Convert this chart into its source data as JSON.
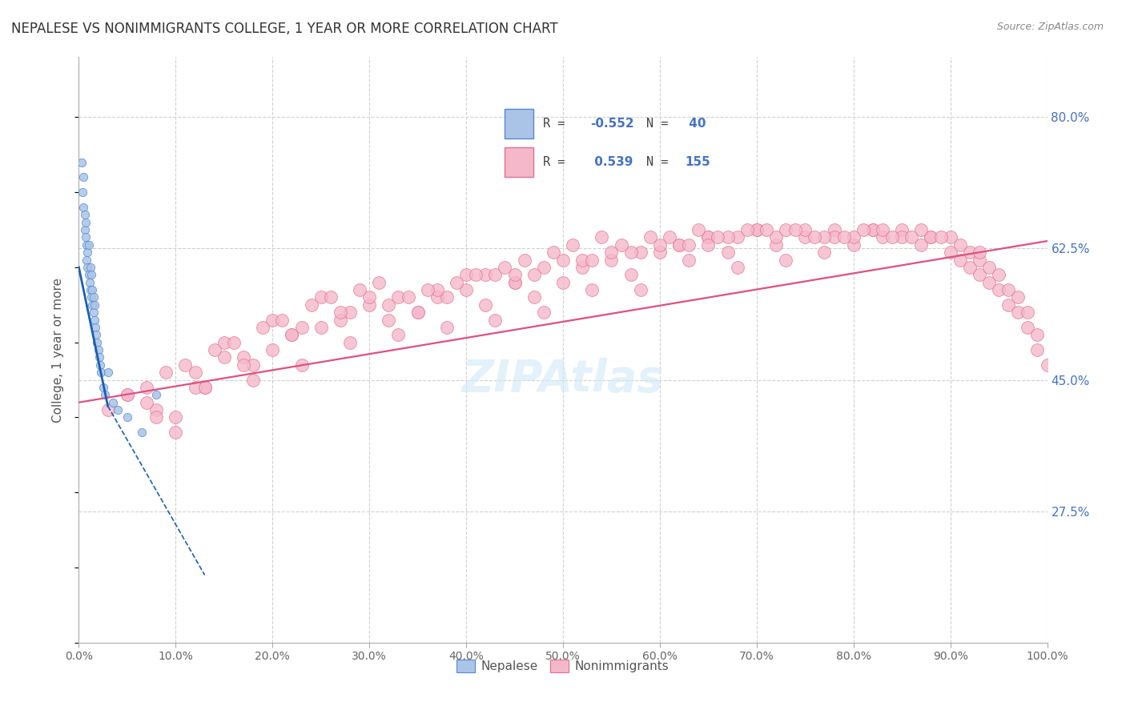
{
  "title": "NEPALESE VS NONIMMIGRANTS COLLEGE, 1 YEAR OR MORE CORRELATION CHART",
  "source": "Source: ZipAtlas.com",
  "ylabel": "College, 1 year or more",
  "xlim": [
    0.0,
    1.0
  ],
  "ylim": [
    0.1,
    0.88
  ],
  "yticks": [
    0.275,
    0.45,
    0.625,
    0.8
  ],
  "ytick_labels": [
    "27.5%",
    "45.0%",
    "62.5%",
    "80.0%"
  ],
  "xticks": [
    0.0,
    0.1,
    0.2,
    0.3,
    0.4,
    0.5,
    0.6,
    0.7,
    0.8,
    0.9,
    1.0
  ],
  "xtick_labels": [
    "0.0%",
    "10.0%",
    "20.0%",
    "30.0%",
    "40.0%",
    "50.0%",
    "60.0%",
    "70.0%",
    "80.0%",
    "90.0%",
    "100.0%"
  ],
  "nepalese_color": "#aac4e8",
  "nonimmigrants_color": "#f5b8cb",
  "nepalese_edge": "#5588cc",
  "nonimmigrants_edge": "#e07090",
  "blue_line_color": "#1a5fb4",
  "pink_line_color": "#e05080",
  "background_color": "#ffffff",
  "grid_color": "#d0d0d0",
  "watermark_color": "#d0e8f8",
  "nepalese_x": [
    0.003,
    0.004,
    0.005,
    0.005,
    0.006,
    0.006,
    0.007,
    0.007,
    0.008,
    0.008,
    0.009,
    0.009,
    0.01,
    0.01,
    0.011,
    0.012,
    0.012,
    0.013,
    0.013,
    0.014,
    0.014,
    0.015,
    0.015,
    0.016,
    0.016,
    0.017,
    0.018,
    0.019,
    0.02,
    0.021,
    0.022,
    0.023,
    0.025,
    0.027,
    0.03,
    0.035,
    0.04,
    0.05,
    0.065,
    0.08
  ],
  "nepalese_y": [
    0.74,
    0.7,
    0.68,
    0.72,
    0.67,
    0.65,
    0.64,
    0.66,
    0.63,
    0.61,
    0.62,
    0.6,
    0.59,
    0.63,
    0.58,
    0.57,
    0.6,
    0.56,
    0.59,
    0.55,
    0.57,
    0.54,
    0.56,
    0.53,
    0.55,
    0.52,
    0.51,
    0.5,
    0.49,
    0.48,
    0.47,
    0.46,
    0.44,
    0.43,
    0.46,
    0.42,
    0.41,
    0.4,
    0.38,
    0.43
  ],
  "nonimmigrants_x": [
    0.05,
    0.08,
    0.1,
    0.12,
    0.13,
    0.15,
    0.17,
    0.18,
    0.2,
    0.22,
    0.23,
    0.25,
    0.27,
    0.28,
    0.3,
    0.32,
    0.33,
    0.35,
    0.37,
    0.38,
    0.4,
    0.42,
    0.43,
    0.45,
    0.47,
    0.48,
    0.5,
    0.52,
    0.53,
    0.55,
    0.57,
    0.58,
    0.6,
    0.62,
    0.63,
    0.65,
    0.67,
    0.68,
    0.7,
    0.72,
    0.73,
    0.75,
    0.77,
    0.78,
    0.8,
    0.82,
    0.83,
    0.85,
    0.87,
    0.88,
    0.9,
    0.9,
    0.91,
    0.91,
    0.92,
    0.92,
    0.93,
    0.93,
    0.94,
    0.94,
    0.95,
    0.95,
    0.96,
    0.96,
    0.97,
    0.97,
    0.98,
    0.98,
    0.99,
    0.99,
    1.0,
    0.15,
    0.25,
    0.35,
    0.45,
    0.55,
    0.65,
    0.75,
    0.2,
    0.3,
    0.4,
    0.5,
    0.6,
    0.7,
    0.8,
    0.1,
    0.28,
    0.48,
    0.68,
    0.88,
    0.18,
    0.38,
    0.58,
    0.78,
    0.22,
    0.42,
    0.62,
    0.82,
    0.07,
    0.32,
    0.52,
    0.72,
    0.12,
    0.45,
    0.65,
    0.85,
    0.37,
    0.57,
    0.77,
    0.08,
    0.13,
    0.23,
    0.27,
    0.33,
    0.43,
    0.53,
    0.63,
    0.73,
    0.83,
    0.93,
    0.17,
    0.47,
    0.67,
    0.87,
    0.03,
    0.05,
    0.07,
    0.09,
    0.11,
    0.14,
    0.16,
    0.19,
    0.21,
    0.24,
    0.26,
    0.29,
    0.31,
    0.34,
    0.36,
    0.39,
    0.41,
    0.44,
    0.46,
    0.49,
    0.51,
    0.54,
    0.56,
    0.59,
    0.61,
    0.64,
    0.66,
    0.69,
    0.71,
    0.74,
    0.76,
    0.79,
    0.81,
    0.84,
    0.86,
    0.89
  ],
  "nonimmigrants_y": [
    0.43,
    0.41,
    0.38,
    0.46,
    0.44,
    0.5,
    0.48,
    0.45,
    0.49,
    0.51,
    0.47,
    0.52,
    0.53,
    0.5,
    0.55,
    0.53,
    0.51,
    0.54,
    0.56,
    0.52,
    0.57,
    0.55,
    0.53,
    0.58,
    0.56,
    0.54,
    0.58,
    0.6,
    0.57,
    0.61,
    0.59,
    0.57,
    0.62,
    0.63,
    0.61,
    0.64,
    0.62,
    0.6,
    0.65,
    0.63,
    0.61,
    0.64,
    0.62,
    0.65,
    0.63,
    0.65,
    0.64,
    0.65,
    0.63,
    0.64,
    0.64,
    0.62,
    0.63,
    0.61,
    0.62,
    0.6,
    0.61,
    0.59,
    0.6,
    0.58,
    0.59,
    0.57,
    0.57,
    0.55,
    0.56,
    0.54,
    0.54,
    0.52,
    0.51,
    0.49,
    0.47,
    0.48,
    0.56,
    0.54,
    0.58,
    0.62,
    0.64,
    0.65,
    0.53,
    0.56,
    0.59,
    0.61,
    0.63,
    0.65,
    0.64,
    0.4,
    0.54,
    0.6,
    0.64,
    0.64,
    0.47,
    0.56,
    0.62,
    0.64,
    0.51,
    0.59,
    0.63,
    0.65,
    0.42,
    0.55,
    0.61,
    0.64,
    0.44,
    0.59,
    0.63,
    0.64,
    0.57,
    0.62,
    0.64,
    0.4,
    0.44,
    0.52,
    0.54,
    0.56,
    0.59,
    0.61,
    0.63,
    0.65,
    0.65,
    0.62,
    0.47,
    0.59,
    0.64,
    0.65,
    0.41,
    0.43,
    0.44,
    0.46,
    0.47,
    0.49,
    0.5,
    0.52,
    0.53,
    0.55,
    0.56,
    0.57,
    0.58,
    0.56,
    0.57,
    0.58,
    0.59,
    0.6,
    0.61,
    0.62,
    0.63,
    0.64,
    0.63,
    0.64,
    0.64,
    0.65,
    0.64,
    0.65,
    0.65,
    0.65,
    0.64,
    0.64,
    0.65,
    0.64,
    0.64,
    0.64
  ],
  "blue_line_x0": 0.0,
  "blue_line_y0": 0.6,
  "blue_line_x1": 0.03,
  "blue_line_y1": 0.415,
  "blue_line_x_dashed0": 0.03,
  "blue_line_y_dashed0": 0.415,
  "blue_line_x_dashed1": 0.13,
  "blue_line_y_dashed1": 0.19,
  "pink_line_x0": 0.0,
  "pink_line_y0": 0.42,
  "pink_line_x1": 1.0,
  "pink_line_y1": 0.635
}
